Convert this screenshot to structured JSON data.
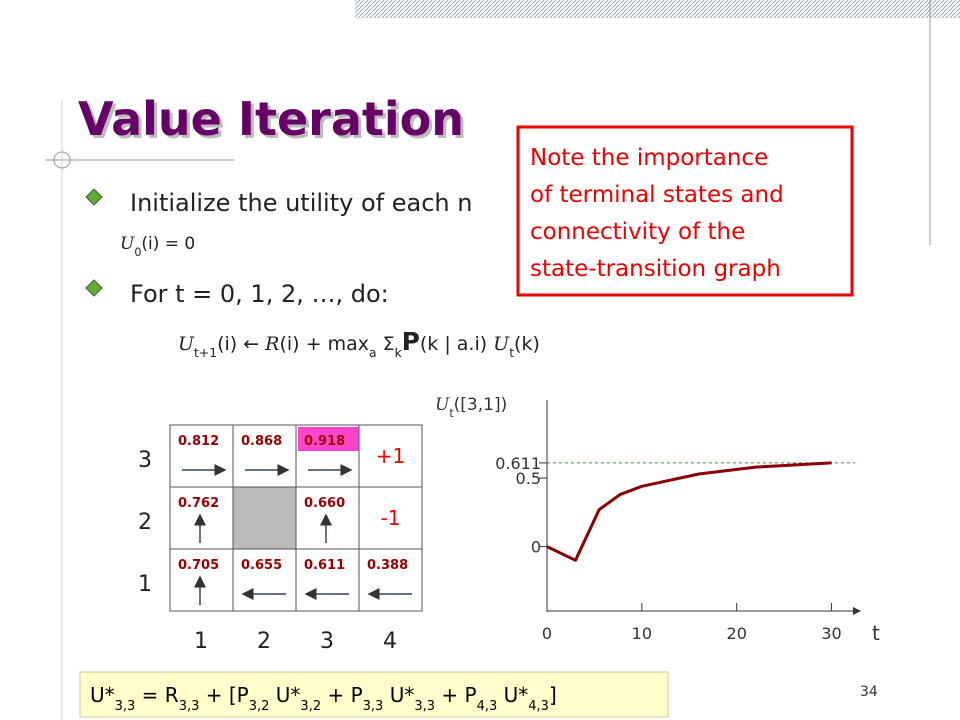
{
  "slide": {
    "title": "Value Iteration",
    "page_number": "34",
    "bullets": [
      {
        "text": "Initialize the utility of each n",
        "detail": [
          {
            "t": "U",
            "sub": "0",
            "script": true
          },
          {
            "t": "(i) = 0"
          }
        ]
      },
      {
        "text": "For t = 0, 1, 2, …, do:",
        "detail": [
          {
            "t": "U",
            "sub": "t+1",
            "script": true
          },
          {
            "t": "(i) ← "
          },
          {
            "t": "R",
            "script": true
          },
          {
            "t": "(i) + max"
          },
          {
            "sub": "a"
          },
          {
            "t": " Σ",
            "sub": "k"
          },
          {
            "t": "P",
            "bold": true
          },
          {
            "t": "(k | a.i) "
          },
          {
            "t": "U",
            "sub": "t",
            "script": true
          },
          {
            "t": "(k)"
          }
        ]
      }
    ],
    "note": [
      "Note the importance",
      "of terminal states and",
      "connectivity of the",
      "state-transition graph"
    ],
    "grid": {
      "rows": [
        [
          "0.812",
          "0.868",
          "0.918",
          "+1"
        ],
        [
          "0.762",
          null,
          "0.660",
          "-1"
        ],
        [
          "0.705",
          "0.655",
          "0.611",
          "0.388"
        ]
      ],
      "row_labels": [
        "3",
        "2",
        "1"
      ],
      "col_labels": [
        "1",
        "2",
        "3",
        "4"
      ]
    },
    "bottom_formula": [
      {
        "t": "U*",
        "sub": "3,3"
      },
      {
        "t": " = R",
        "sub": "3,3"
      },
      {
        "t": " + [P",
        "sub": "3,2"
      },
      {
        "t": " U*",
        "sub": "3,2"
      },
      {
        "t": " + P",
        "sub": "3,3"
      },
      {
        "t": " U*",
        "sub": "3,3"
      },
      {
        "t": " + P",
        "sub": "4,3"
      },
      {
        "t": " U*",
        "sub": "4,3"
      },
      {
        "t": "]"
      }
    ]
  },
  "chart_data": {
    "type": "line",
    "y_label": [
      {
        "t": "U",
        "sub": "t",
        "script": true
      },
      {
        "t": "([3,1])"
      }
    ],
    "x_label": "t",
    "x": [
      0,
      3,
      5.5,
      7.7,
      10,
      16,
      22,
      30
    ],
    "values": [
      0,
      -0.1,
      0.27,
      0.38,
      0.44,
      0.53,
      0.58,
      0.611
    ],
    "color": "#8b0000",
    "xlim": [
      0,
      33
    ],
    "ylim": [
      -0.47,
      1.07
    ],
    "xticks": [
      0,
      10,
      20,
      30
    ],
    "yticks": [
      0,
      0.5,
      0.611
    ],
    "reference_line": 0.611
  }
}
